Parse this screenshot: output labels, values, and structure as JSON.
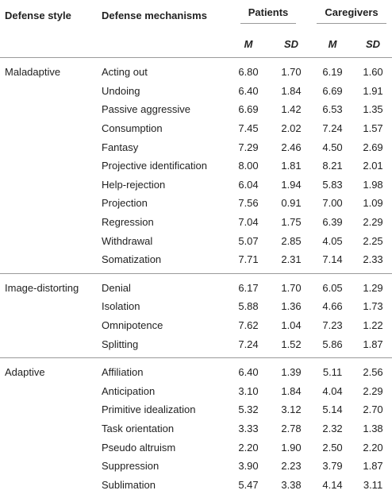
{
  "header": {
    "defense_style": "Defense style",
    "defense_mechanisms": "Defense mechanisms",
    "patients": "Patients",
    "caregivers": "Caregivers",
    "m": "M",
    "sd": "SD"
  },
  "groups": [
    {
      "style": "Maladaptive",
      "rows": [
        {
          "mechanism": "Acting out",
          "p_m": "6.80",
          "p_sd": "1.70",
          "c_m": "6.19",
          "c_sd": "1.60"
        },
        {
          "mechanism": "Undoing",
          "p_m": "6.40",
          "p_sd": "1.84",
          "c_m": "6.69",
          "c_sd": "1.91"
        },
        {
          "mechanism": "Passive aggressive",
          "p_m": "6.69",
          "p_sd": "1.42",
          "c_m": "6.53",
          "c_sd": "1.35"
        },
        {
          "mechanism": "Consumption",
          "p_m": "7.45",
          "p_sd": "2.02",
          "c_m": "7.24",
          "c_sd": "1.57"
        },
        {
          "mechanism": "Fantasy",
          "p_m": "7.29",
          "p_sd": "2.46",
          "c_m": "4.50",
          "c_sd": "2.69"
        },
        {
          "mechanism": "Projective identification",
          "p_m": "8.00",
          "p_sd": "1.81",
          "c_m": "8.21",
          "c_sd": "2.01"
        },
        {
          "mechanism": "Help-rejection",
          "p_m": "6.04",
          "p_sd": "1.94",
          "c_m": "5.83",
          "c_sd": "1.98"
        },
        {
          "mechanism": "Projection",
          "p_m": "7.56",
          "p_sd": "0.91",
          "c_m": "7.00",
          "c_sd": "1.09"
        },
        {
          "mechanism": "Regression",
          "p_m": "7.04",
          "p_sd": "1.75",
          "c_m": "6.39",
          "c_sd": "2.29"
        },
        {
          "mechanism": "Withdrawal",
          "p_m": "5.07",
          "p_sd": "2.85",
          "c_m": "4.05",
          "c_sd": "2.25"
        },
        {
          "mechanism": "Somatization",
          "p_m": "7.71",
          "p_sd": "2.31",
          "c_m": "7.14",
          "c_sd": "2.33"
        }
      ]
    },
    {
      "style": "Image-distorting",
      "rows": [
        {
          "mechanism": "Denial",
          "p_m": "6.17",
          "p_sd": "1.70",
          "c_m": "6.05",
          "c_sd": "1.29"
        },
        {
          "mechanism": "Isolation",
          "p_m": "5.88",
          "p_sd": "1.36",
          "c_m": "4.66",
          "c_sd": "1.73"
        },
        {
          "mechanism": "Omnipotence",
          "p_m": "7.62",
          "p_sd": "1.04",
          "c_m": "7.23",
          "c_sd": "1.22"
        },
        {
          "mechanism": "Splitting",
          "p_m": "7.24",
          "p_sd": "1.52",
          "c_m": "5.86",
          "c_sd": "1.87"
        }
      ]
    },
    {
      "style": "Adaptive",
      "rows": [
        {
          "mechanism": "Affiliation",
          "p_m": "6.40",
          "p_sd": "1.39",
          "c_m": "5.11",
          "c_sd": "2.56"
        },
        {
          "mechanism": "Anticipation",
          "p_m": "3.10",
          "p_sd": "1.84",
          "c_m": "4.04",
          "c_sd": "2.29"
        },
        {
          "mechanism": "Primitive idealization",
          "p_m": "5.32",
          "p_sd": "3.12",
          "c_m": "5.14",
          "c_sd": "2.70"
        },
        {
          "mechanism": "Task orientation",
          "p_m": "3.33",
          "p_sd": "2.78",
          "c_m": "2.32",
          "c_sd": "1.38"
        },
        {
          "mechanism": "Pseudo altruism",
          "p_m": "2.20",
          "p_sd": "1.90",
          "c_m": "2.50",
          "c_sd": "2.20"
        },
        {
          "mechanism": "Suppression",
          "p_m": "3.90",
          "p_sd": "2.23",
          "c_m": "3.79",
          "c_sd": "1.87"
        },
        {
          "mechanism": "Sublimation",
          "p_m": "5.47",
          "p_sd": "3.38",
          "c_m": "4.14",
          "c_sd": "3.11"
        }
      ]
    }
  ]
}
